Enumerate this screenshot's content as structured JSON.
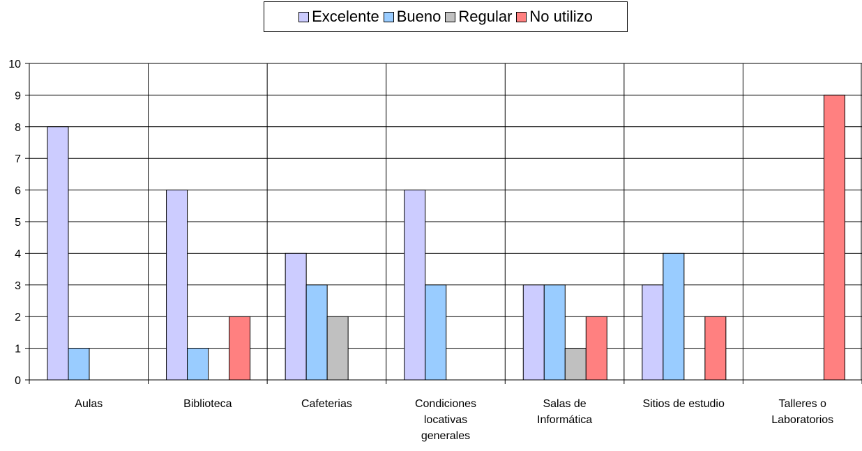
{
  "chart_data": {
    "type": "bar",
    "categories": [
      [
        "Aulas"
      ],
      [
        "Biblioteca"
      ],
      [
        "Cafeterias"
      ],
      [
        "Condiciones",
        "locativas",
        "generales"
      ],
      [
        "Salas de",
        "Informática"
      ],
      [
        "Sitios de estudio"
      ],
      [
        "Talleres o",
        "Laboratorios"
      ]
    ],
    "series": [
      {
        "name": "Excelente",
        "color": "#ccccff",
        "values": [
          8,
          6,
          4,
          6,
          3,
          3,
          0
        ]
      },
      {
        "name": "Bueno",
        "color": "#99ccff",
        "values": [
          1,
          1,
          3,
          3,
          3,
          4,
          0
        ]
      },
      {
        "name": "Regular",
        "color": "#c0c0c0",
        "values": [
          0,
          0,
          2,
          0,
          1,
          0,
          0
        ]
      },
      {
        "name": "No utilizo",
        "color": "#ff8080",
        "values": [
          0,
          2,
          0,
          0,
          2,
          2,
          9
        ]
      }
    ],
    "yticks": [
      "0",
      "1",
      "2",
      "3",
      "4",
      "5",
      "6",
      "7",
      "8",
      "9",
      "10"
    ],
    "ylim": [
      0,
      10
    ],
    "grid": true,
    "legend_position": "top"
  }
}
